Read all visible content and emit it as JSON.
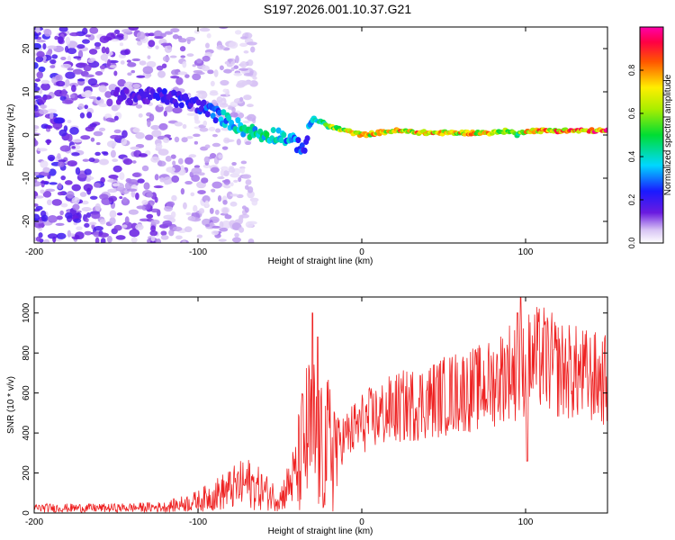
{
  "figure_title": "S197.2026.001.10.37.G21",
  "chart_data": [
    {
      "type": "heatmap",
      "title": "S197.2026.001.10.37.G21",
      "xlabel": "Height of straight line (km)",
      "ylabel": "Frequency (Hz)",
      "xlim": [
        -200,
        150
      ],
      "ylim": [
        -25,
        25
      ],
      "xticks": [
        -200,
        -100,
        0,
        100
      ],
      "yticks": [
        -20,
        -10,
        0,
        10,
        20
      ],
      "colorbar": {
        "label": "Normalized spectral amplitude",
        "range": [
          0,
          1
        ],
        "ticks": [
          0.0,
          0.2,
          0.4,
          0.6,
          0.8
        ]
      },
      "ridge": {
        "x": [
          -150,
          -120,
          -100,
          -90,
          -80,
          -70,
          -60,
          -50,
          -40,
          -35,
          -30,
          -25,
          -20,
          -10,
          0,
          20,
          40,
          60,
          80,
          90,
          95,
          100,
          120,
          150
        ],
        "y": [
          9,
          9,
          7,
          5,
          3,
          1,
          0,
          0,
          -2,
          -3,
          4,
          3,
          2,
          1,
          0,
          1,
          0.5,
          0.5,
          0.5,
          1,
          0,
          1,
          1,
          1
        ],
        "amplitude": [
          0.15,
          0.2,
          0.22,
          0.3,
          0.38,
          0.42,
          0.42,
          0.38,
          0.3,
          0.22,
          0.4,
          0.5,
          0.6,
          0.65,
          0.7,
          0.75,
          0.75,
          0.72,
          0.72,
          0.6,
          0.5,
          0.7,
          0.8,
          0.85
        ]
      },
      "noise_region_x": [
        -200,
        -100
      ]
    },
    {
      "type": "line",
      "xlabel": "Height of straight line (km)",
      "ylabel": "SNR (10 * v/v)",
      "xlim": [
        -200,
        150
      ],
      "ylim": [
        0,
        1080
      ],
      "xticks": [
        -200,
        -100,
        0,
        100
      ],
      "yticks": [
        0,
        200,
        400,
        600,
        800,
        1000
      ],
      "series": [
        {
          "name": "SNR",
          "color": "#ee2222",
          "envelope_x": [
            -200,
            -150,
            -120,
            -100,
            -80,
            -70,
            -60,
            -50,
            -40,
            -35,
            -30,
            -28,
            -25,
            -20,
            -10,
            0,
            20,
            40,
            60,
            70,
            80,
            90,
            95,
            100,
            110,
            120,
            150
          ],
          "envelope_y": [
            25,
            25,
            30,
            60,
            120,
            150,
            110,
            70,
            200,
            350,
            400,
            350,
            300,
            330,
            380,
            450,
            520,
            560,
            610,
            620,
            650,
            720,
            690,
            740,
            780,
            720,
            660
          ],
          "spike_x": [
            -30,
            -27,
            95,
            97,
            101
          ],
          "spike_y": [
            1000,
            880,
            1000,
            1080,
            260
          ]
        }
      ]
    }
  ]
}
